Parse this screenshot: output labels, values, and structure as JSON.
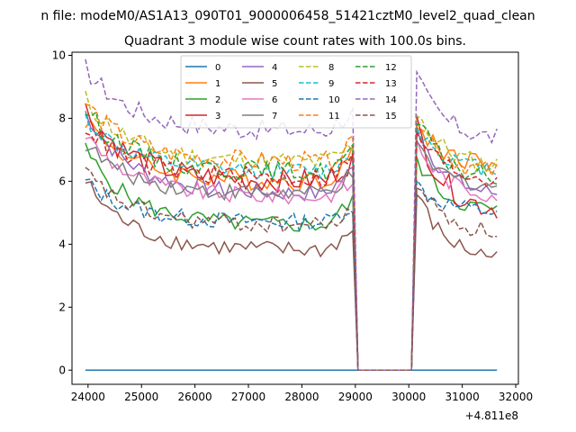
{
  "figure": {
    "suptitle": "n file: modeM0/AS1A13_090T01_9000006458_51421cztM0_level2_quad_clean"
  },
  "chart_data": {
    "type": "line",
    "title": "Quadrant 3 module wise count rates with 100.0s bins.",
    "xlabel": "",
    "ylabel": "",
    "x_offset_label": "+4.811e8",
    "x_offset": 481100000,
    "xlim": [
      23700,
      32050
    ],
    "ylim": [
      -0.45,
      10.1
    ],
    "xticks": [
      24000,
      25000,
      26000,
      27000,
      28000,
      29000,
      30000,
      31000,
      32000
    ],
    "yticks": [
      0,
      2,
      4,
      6,
      8,
      10
    ],
    "grid": false,
    "legend": {
      "placement": "top-center",
      "columns": 4
    },
    "x_range": {
      "start": 23950,
      "end": 31650,
      "step": 100
    },
    "gap": {
      "x_from": 29050,
      "x_to": 30050,
      "value": 0.0
    },
    "series": [
      {
        "name": "0",
        "color": "#1f77b4",
        "linestyle": "solid",
        "values": "constant",
        "baseline": 0.0,
        "noise": 0.0,
        "start": 0.0,
        "end": 0.0,
        "edge": 0.0
      },
      {
        "name": "1",
        "color": "#ff7f0e",
        "linestyle": "solid",
        "baseline": 6.0,
        "noise": 0.3,
        "start": 8.0,
        "end": 6.5,
        "edge": 7.0
      },
      {
        "name": "2",
        "color": "#2ca02c",
        "linestyle": "solid",
        "baseline": 4.6,
        "noise": 0.25,
        "start": 7.0,
        "end": 5.0,
        "edge": 5.5
      },
      {
        "name": "3",
        "color": "#d62728",
        "linestyle": "solid",
        "baseline": 6.0,
        "noise": 0.35,
        "start": 8.3,
        "end": 5.0,
        "edge": 6.8
      },
      {
        "name": "4",
        "color": "#9467bd",
        "linestyle": "solid",
        "baseline": 5.6,
        "noise": 0.25,
        "start": 8.2,
        "end": 5.5,
        "edge": 6.5
      },
      {
        "name": "5",
        "color": "#8c564b",
        "linestyle": "solid",
        "baseline": 3.8,
        "noise": 0.25,
        "start": 6.0,
        "end": 3.5,
        "edge": 4.5
      },
      {
        "name": "6",
        "color": "#e377c2",
        "linestyle": "solid",
        "baseline": 5.5,
        "noise": 0.25,
        "start": 7.5,
        "end": 5.5,
        "edge": 6.0
      },
      {
        "name": "7",
        "color": "#7f7f7f",
        "linestyle": "solid",
        "baseline": 5.6,
        "noise": 0.25,
        "start": 7.2,
        "end": 5.8,
        "edge": 6.3
      },
      {
        "name": "8",
        "color": "#bcbd22",
        "linestyle": "dashed",
        "baseline": 6.6,
        "noise": 0.3,
        "start": 8.6,
        "end": 6.4,
        "edge": 7.2
      },
      {
        "name": "9",
        "color": "#17becf",
        "linestyle": "dashed",
        "baseline": 6.3,
        "noise": 0.25,
        "start": 8.0,
        "end": 6.3,
        "edge": 6.9
      },
      {
        "name": "10",
        "color": "#1f77b4",
        "linestyle": "dashed",
        "baseline": 4.7,
        "noise": 0.25,
        "start": 6.0,
        "end": 5.0,
        "edge": 5.3
      },
      {
        "name": "11",
        "color": "#ff7f0e",
        "linestyle": "dashed",
        "baseline": 6.6,
        "noise": 0.3,
        "start": 8.5,
        "end": 6.2,
        "edge": 7.2
      },
      {
        "name": "12",
        "color": "#2ca02c",
        "linestyle": "dashed",
        "baseline": 6.3,
        "noise": 0.3,
        "start": 8.3,
        "end": 6.0,
        "edge": 7.0
      },
      {
        "name": "13",
        "color": "#d62728",
        "linestyle": "dashed",
        "baseline": 6.1,
        "noise": 0.3,
        "start": 7.8,
        "end": 6.0,
        "edge": 6.8
      },
      {
        "name": "14",
        "color": "#9467bd",
        "linestyle": "dashed",
        "baseline": 7.6,
        "noise": 0.3,
        "start": 9.6,
        "end": 7.3,
        "edge": 8.3
      },
      {
        "name": "15",
        "color": "#8c564b",
        "linestyle": "dashed",
        "baseline": 4.6,
        "noise": 0.25,
        "start": 6.3,
        "end": 4.3,
        "edge": 5.0
      }
    ]
  }
}
